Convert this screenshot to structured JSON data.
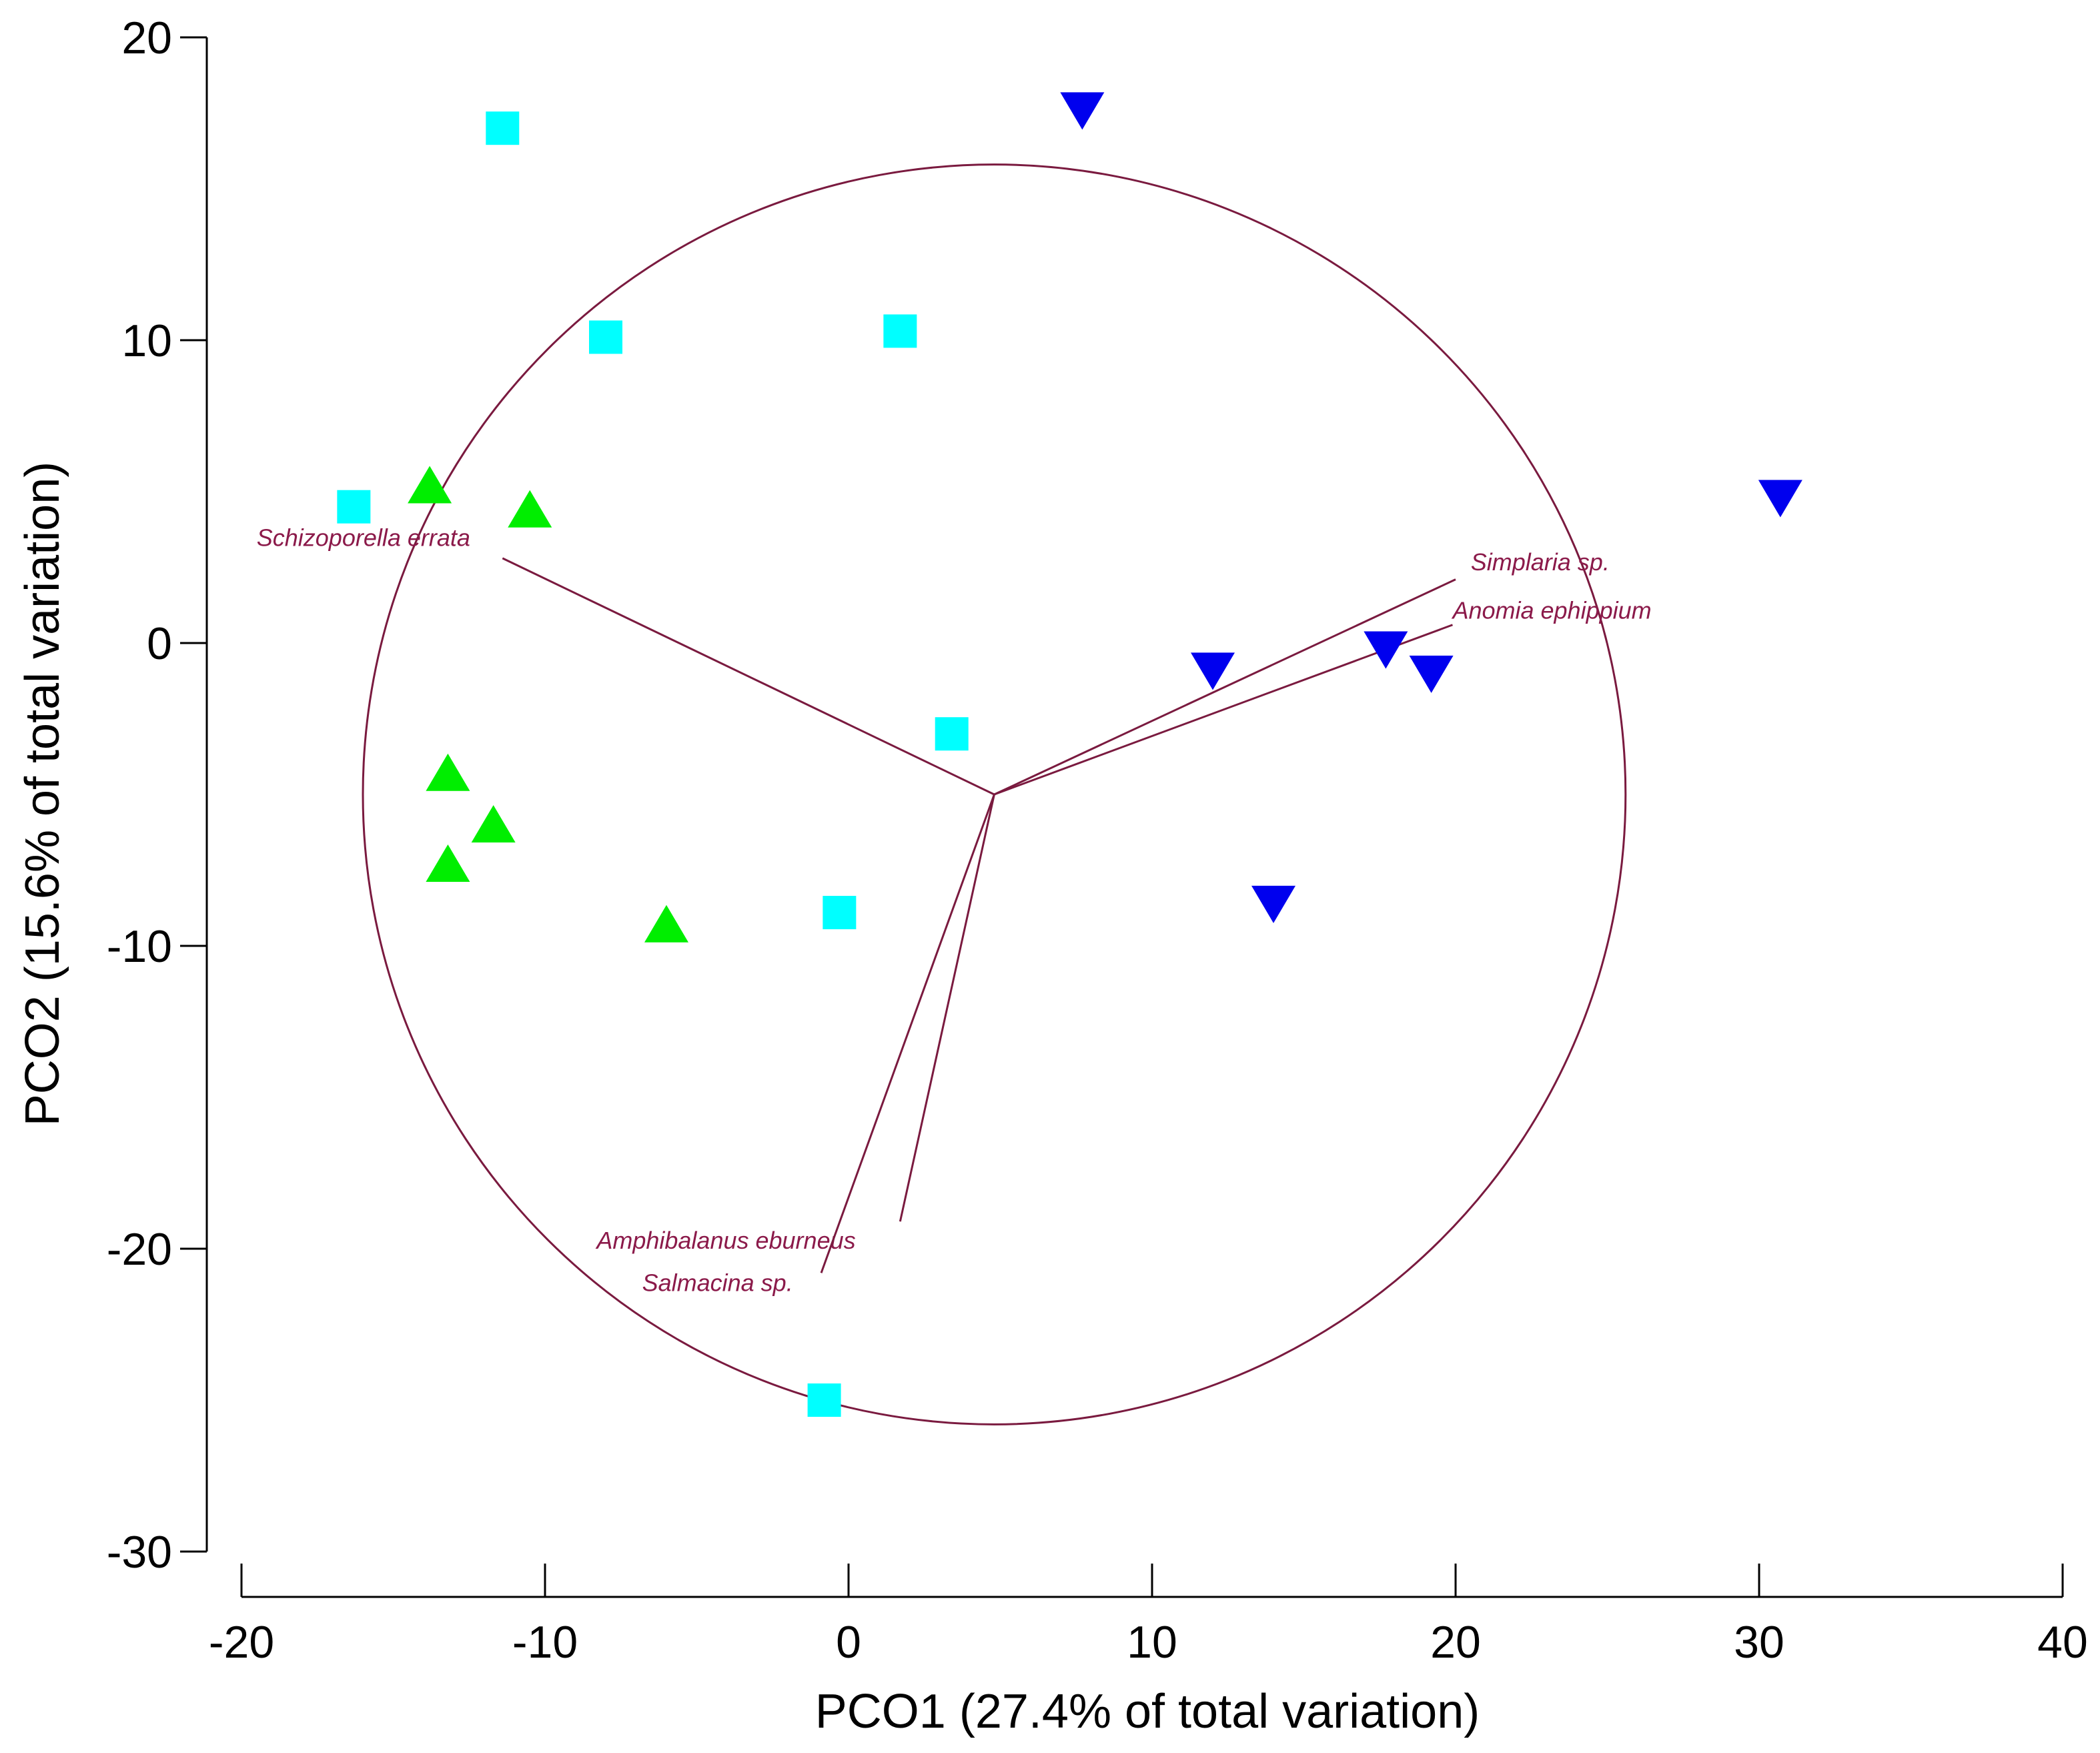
{
  "chart_data": {
    "type": "scatter",
    "title": "",
    "xlabel": "PCO1 (27.4% of total variation)",
    "ylabel": "PCO2 (15.6% of total variation)",
    "xlim": [
      -20,
      40
    ],
    "ylim": [
      -30,
      20
    ],
    "xticks": [
      -20,
      -10,
      0,
      10,
      20,
      30,
      40
    ],
    "yticks": [
      20,
      10,
      0,
      -10,
      -20,
      -30
    ],
    "series": [
      {
        "name": "square",
        "marker": "square",
        "color": "#00ffff",
        "points": [
          {
            "x": -11.4,
            "y": 17.0
          },
          {
            "x": -8.0,
            "y": 10.1
          },
          {
            "x": 1.7,
            "y": 10.3
          },
          {
            "x": -16.3,
            "y": 4.5
          },
          {
            "x": 3.4,
            "y": -3.0
          },
          {
            "x": -0.3,
            "y": -8.9
          },
          {
            "x": -0.8,
            "y": -25.0
          }
        ]
      },
      {
        "name": "triangle-up",
        "marker": "triangle-up",
        "color": "#00ee00",
        "points": [
          {
            "x": -13.8,
            "y": 5.1
          },
          {
            "x": -10.5,
            "y": 4.3
          },
          {
            "x": -13.2,
            "y": -4.4
          },
          {
            "x": -11.7,
            "y": -6.1
          },
          {
            "x": -13.2,
            "y": -7.4
          },
          {
            "x": -6.0,
            "y": -9.4
          }
        ]
      },
      {
        "name": "triangle-down",
        "marker": "triangle-down",
        "color": "#0000ee",
        "points": [
          {
            "x": 7.7,
            "y": 17.7
          },
          {
            "x": 30.7,
            "y": 4.9
          },
          {
            "x": 12.0,
            "y": -0.8
          },
          {
            "x": 17.7,
            "y": -0.1
          },
          {
            "x": 19.2,
            "y": -0.9
          },
          {
            "x": 14.0,
            "y": -8.5
          }
        ]
      }
    ],
    "vector_origin": {
      "x": 4.8,
      "y": -5.0
    },
    "correlation_circle": {
      "center": [
        4.8,
        -5.0
      ],
      "radius_x": 20.8,
      "radius_y": 20.8
    },
    "vectors": [
      {
        "label": "Schizoporella errata",
        "x": -11.4,
        "y": 2.8
      },
      {
        "label": "Simplaria sp.",
        "x": 20.0,
        "y": 2.1
      },
      {
        "label": "Anomia ephippium",
        "x": 19.9,
        "y": 0.6
      },
      {
        "label": "Amphibalanus eburneus",
        "x": 1.7,
        "y": -19.1
      },
      {
        "label": "Salmacina sp.",
        "x": -0.9,
        "y": -20.8
      }
    ],
    "vector_label_positions": [
      {
        "x": -19.5,
        "y": 3.2
      },
      {
        "x": 20.5,
        "y": 2.4
      },
      {
        "x": 19.9,
        "y": 0.8
      },
      {
        "x": -8.3,
        "y": -20.0
      },
      {
        "x": -6.8,
        "y": -21.4
      }
    ]
  }
}
